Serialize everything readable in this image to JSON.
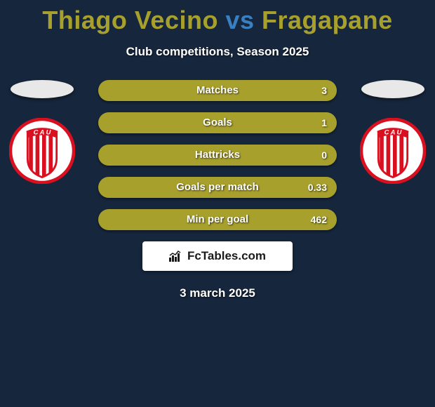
{
  "title": {
    "player1": "Thiago Vecino",
    "vs": "vs",
    "player2": "Fragapane",
    "color1": "#a8a02c",
    "color_vs": "#3a7fbf",
    "color2": "#a8a02c",
    "fontsize": 36
  },
  "subtitle": "Club competitions, Season 2025",
  "players": {
    "left": {
      "ellipse_color": "#e8e8e8",
      "badge": {
        "bg_outer": "#ffffff",
        "ring": "#d8101f",
        "stripe": "#d8101f",
        "text": "CAU",
        "text_color": "#ffffff"
      }
    },
    "right": {
      "ellipse_color": "#e8e8e8",
      "badge": {
        "bg_outer": "#ffffff",
        "ring": "#d8101f",
        "stripe": "#d8101f",
        "text": "CAU",
        "text_color": "#ffffff"
      }
    }
  },
  "stats": {
    "bar_bg": "#a8a02c",
    "fill_color": "#7d7a20",
    "rows": [
      {
        "label": "Matches",
        "left_val": "",
        "right_val": "3",
        "left_pct": 0,
        "right_pct": 0
      },
      {
        "label": "Goals",
        "left_val": "",
        "right_val": "1",
        "left_pct": 0,
        "right_pct": 0
      },
      {
        "label": "Hattricks",
        "left_val": "",
        "right_val": "0",
        "left_pct": 0,
        "right_pct": 0
      },
      {
        "label": "Goals per match",
        "left_val": "",
        "right_val": "0.33",
        "left_pct": 0,
        "right_pct": 0
      },
      {
        "label": "Min per goal",
        "left_val": "",
        "right_val": "462",
        "left_pct": 0,
        "right_pct": 0
      }
    ]
  },
  "brand": "FcTables.com",
  "date": "3 march 2025",
  "colors": {
    "page_bg": "#16263c",
    "text": "#ffffff"
  }
}
